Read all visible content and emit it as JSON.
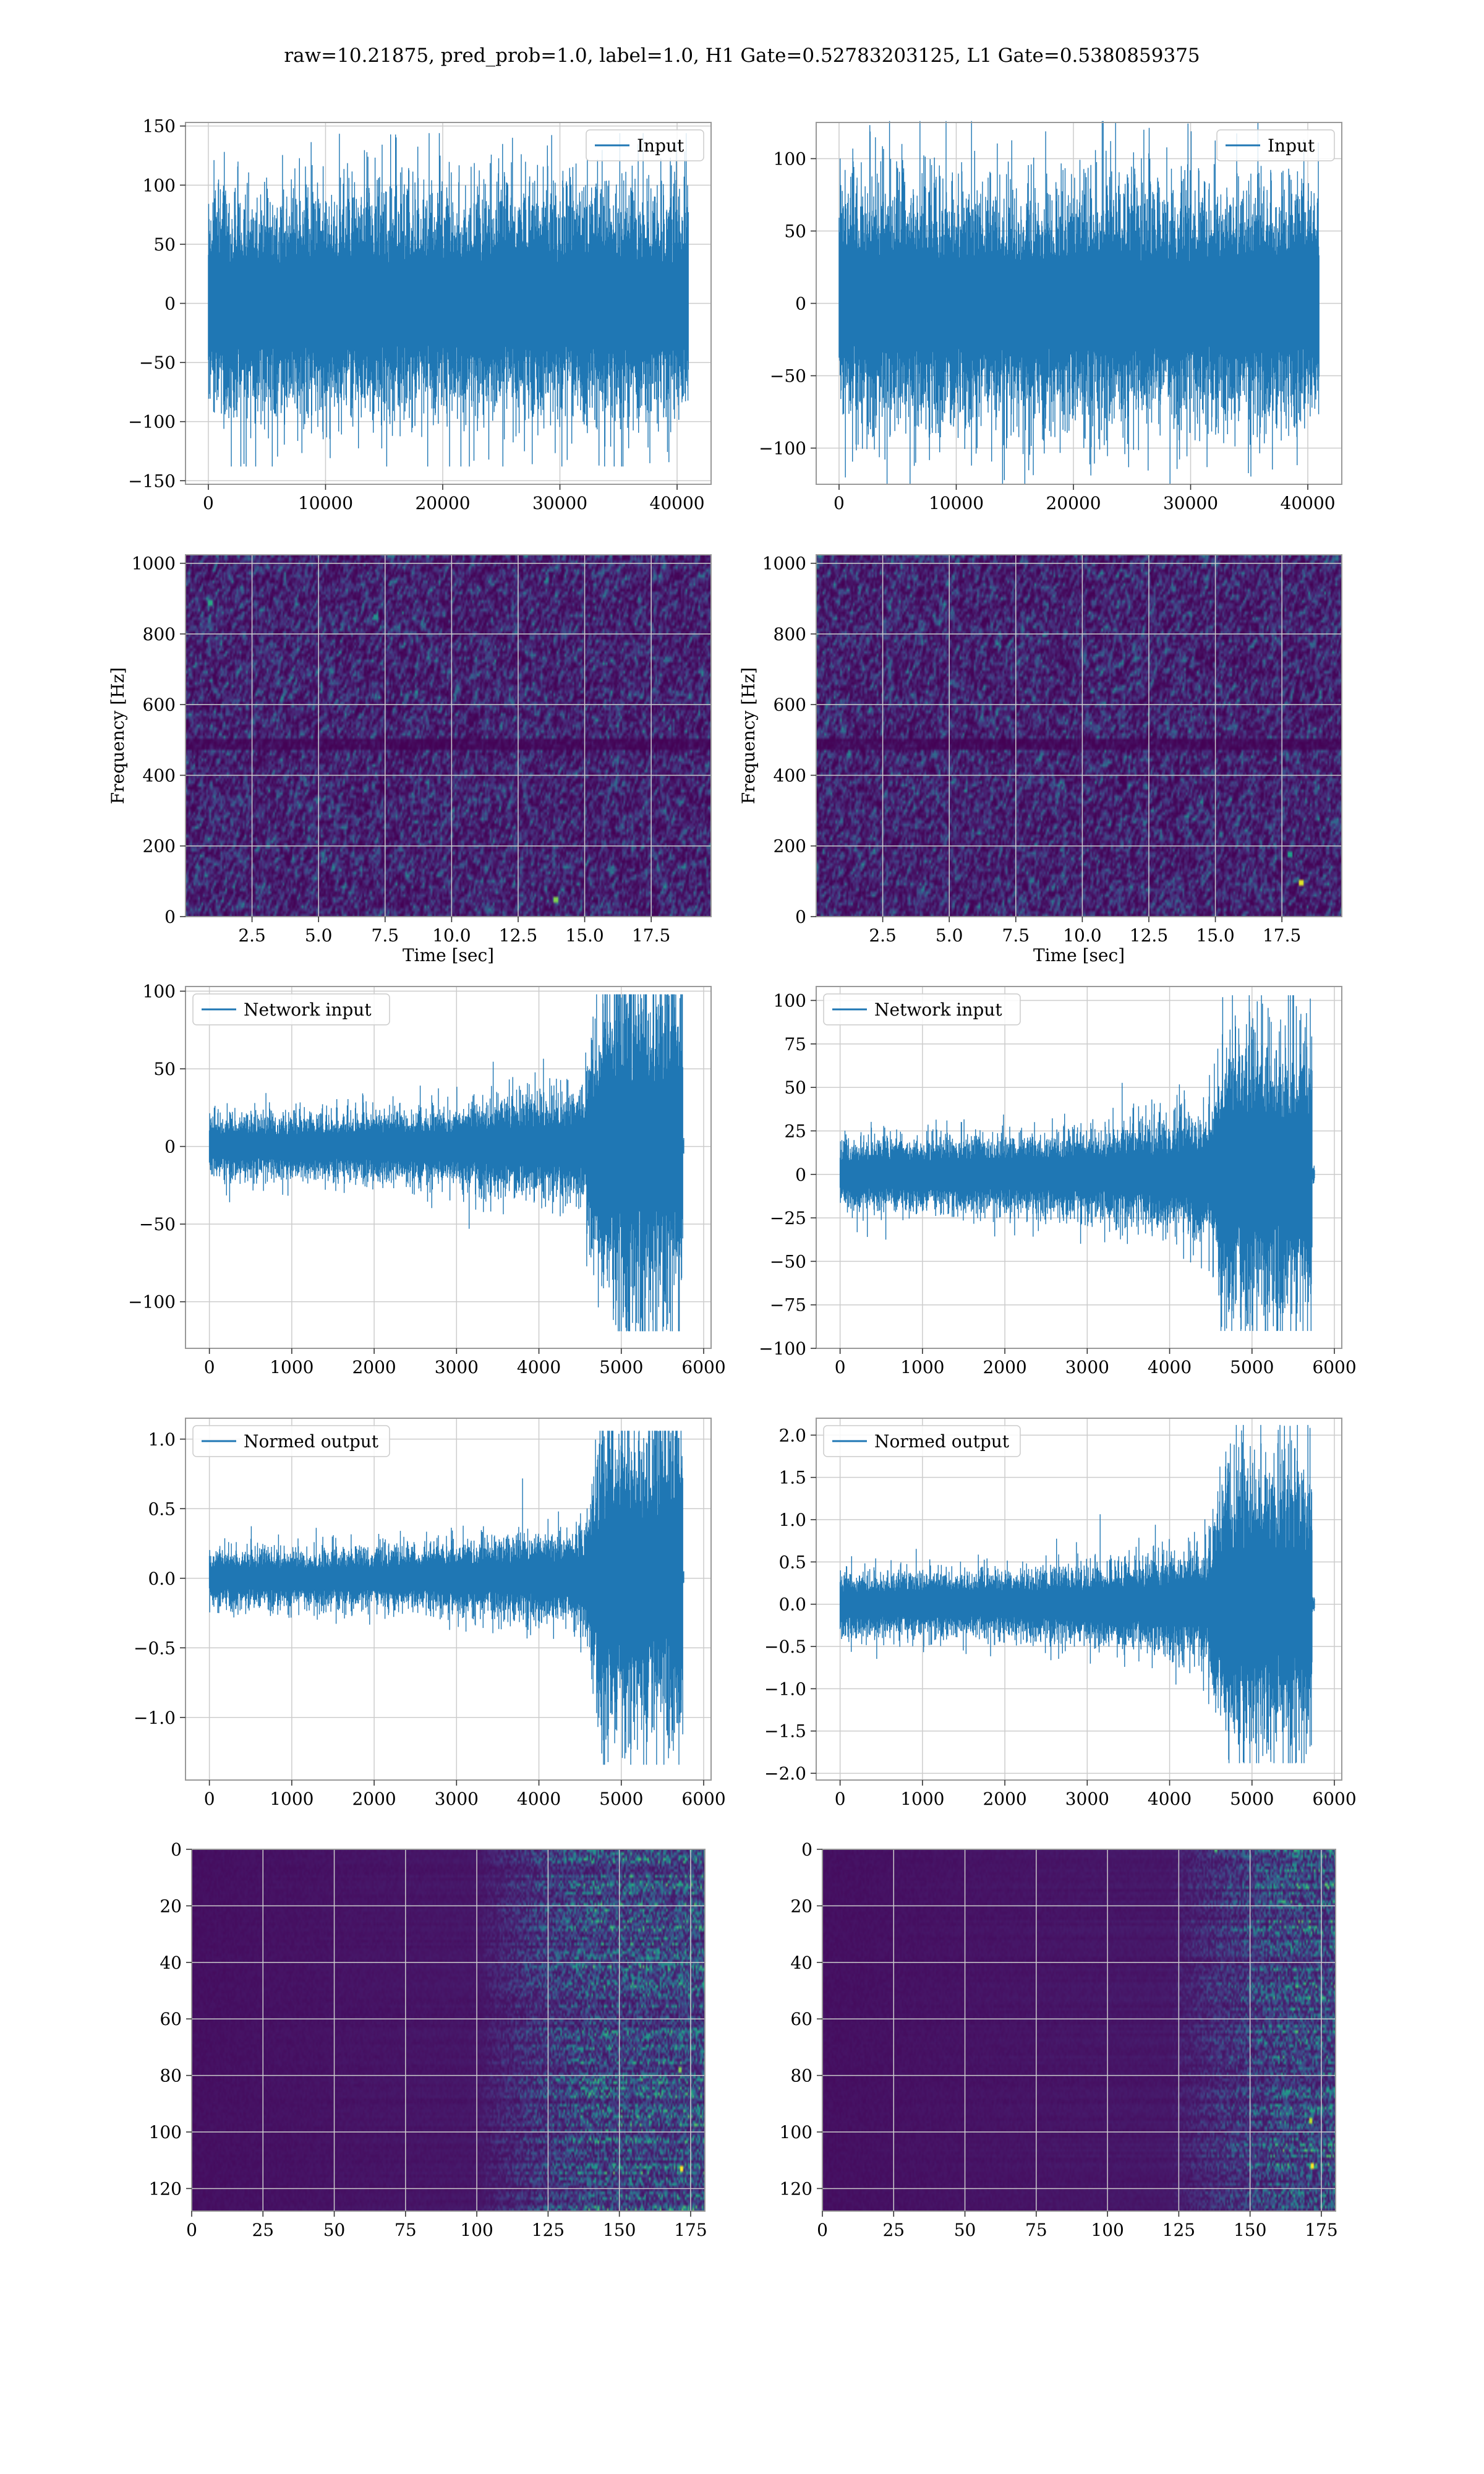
{
  "figure": {
    "title": "raw=10.21875, pred_prob=1.0, label=1.0, H1 Gate=0.52783203125, L1 Gate=0.5380859375",
    "signal_color": "#1f77b4",
    "frame_color": "#999999",
    "grid_color": "#cccccc",
    "heatmap_colormap": "viridis"
  },
  "chart_data": [
    {
      "id": "row1-left",
      "type": "line",
      "legend": [
        "Input"
      ],
      "legend_loc": "upper right",
      "xlim": [
        -1950,
        42900
      ],
      "ylim": [
        -153,
        153
      ],
      "xticks": [
        0,
        10000,
        20000,
        30000,
        40000
      ],
      "yticks": [
        -150,
        -100,
        -50,
        0,
        50,
        100,
        150
      ],
      "grid": true,
      "series": [
        {
          "name": "Input",
          "n": 40960,
          "envelope": {
            "stat": "noise",
            "sigma": 28,
            "peak_hi": 144,
            "peak_lo": -138
          }
        }
      ]
    },
    {
      "id": "row1-right",
      "type": "line",
      "legend": [
        "Input"
      ],
      "legend_loc": "upper right",
      "xlim": [
        -1950,
        42900
      ],
      "ylim": [
        -125,
        125
      ],
      "xticks": [
        0,
        10000,
        20000,
        30000,
        40000
      ],
      "yticks": [
        -100,
        -50,
        0,
        50,
        100
      ],
      "grid": true,
      "series": [
        {
          "name": "Input",
          "n": 40960,
          "envelope": {
            "stat": "noise",
            "sigma": 24,
            "peak_hi": 126,
            "peak_lo": -125
          }
        }
      ]
    },
    {
      "id": "row2-left",
      "type": "heatmap",
      "xlabel": "Time [sec]",
      "ylabel": "Frequency [Hz]",
      "xlim": [
        0,
        19.75
      ],
      "ylim": [
        0,
        1024
      ],
      "xticks": [
        "2.5",
        "5.0",
        "7.5",
        "10.0",
        "12.5",
        "15.0",
        "17.5"
      ],
      "xtick_values": [
        2.5,
        5.0,
        7.5,
        10.0,
        12.5,
        15.0,
        17.5
      ],
      "yticks": [
        "0",
        "200",
        "400",
        "600",
        "800",
        "1000"
      ],
      "ytick_values": [
        0,
        200,
        400,
        600,
        800,
        1000
      ],
      "grid": true,
      "colormap": "viridis",
      "features": {
        "dark_band_hz": [
          480,
          510
        ],
        "hot_spots": [
          {
            "t": 13.9,
            "f": 45,
            "v": 0.8
          },
          {
            "t": 7.1,
            "f": 845,
            "v": 0.5
          },
          {
            "t": 0.9,
            "f": 890,
            "v": 0.6
          }
        ]
      }
    },
    {
      "id": "row2-right",
      "type": "heatmap",
      "xlabel": "Time [sec]",
      "ylabel": "Frequency [Hz]",
      "xlim": [
        0,
        19.75
      ],
      "ylim": [
        0,
        1024
      ],
      "xticks": [
        "2.5",
        "5.0",
        "7.5",
        "10.0",
        "12.5",
        "15.0",
        "17.5"
      ],
      "xtick_values": [
        2.5,
        5.0,
        7.5,
        10.0,
        12.5,
        15.0,
        17.5
      ],
      "yticks": [
        "0",
        "200",
        "400",
        "600",
        "800",
        "1000"
      ],
      "ytick_values": [
        0,
        200,
        400,
        600,
        800,
        1000
      ],
      "grid": true,
      "colormap": "viridis",
      "features": {
        "dark_band_hz": [
          480,
          510
        ],
        "hot_spots": [
          {
            "t": 18.2,
            "f": 95,
            "v": 0.95
          },
          {
            "t": 17.8,
            "f": 180,
            "v": 0.55
          }
        ]
      }
    },
    {
      "id": "row3-left",
      "type": "line",
      "legend": [
        "Network input"
      ],
      "legend_loc": "upper left",
      "xlim": [
        -290,
        6090
      ],
      "ylim": [
        -130,
        103
      ],
      "xticks": [
        0,
        1000,
        2000,
        3000,
        4000,
        5000,
        6000
      ],
      "yticks": [
        -100,
        -50,
        0,
        50,
        100
      ],
      "grid": true,
      "series": [
        {
          "name": "Network input",
          "n": 5760,
          "envelope": {
            "stat": "chirp",
            "base_sigma": 6,
            "burst_start": 4680,
            "burst_end": 5750,
            "burst_sigma": 32,
            "peak_hi": 98,
            "peak_lo": -119
          }
        }
      ]
    },
    {
      "id": "row3-right",
      "type": "line",
      "legend": [
        "Network input"
      ],
      "legend_loc": "upper left",
      "xlim": [
        -290,
        6090
      ],
      "ylim": [
        -100,
        108
      ],
      "xticks": [
        0,
        1000,
        2000,
        3000,
        4000,
        5000,
        6000
      ],
      "yticks": [
        -100,
        -75,
        -50,
        -25,
        0,
        25,
        50,
        75,
        100
      ],
      "grid": true,
      "series": [
        {
          "name": "Network input",
          "n": 5760,
          "envelope": {
            "stat": "chirp",
            "base_sigma": 6,
            "burst_start": 4580,
            "burst_end": 5730,
            "burst_sigma": 24,
            "peak_hi": 103,
            "peak_lo": -90
          }
        }
      ]
    },
    {
      "id": "row4-left",
      "type": "line",
      "legend": [
        "Normed output"
      ],
      "legend_loc": "upper left",
      "xlim": [
        -290,
        6090
      ],
      "ylim": [
        -1.45,
        1.15
      ],
      "xticks": [
        0,
        1000,
        2000,
        3000,
        4000,
        5000,
        6000
      ],
      "yticks": [
        "-1.0",
        "-0.5",
        "0.0",
        "0.5",
        "1.0"
      ],
      "ytick_values": [
        -1.0,
        -0.5,
        0.0,
        0.5,
        1.0
      ],
      "grid": true,
      "series": [
        {
          "name": "Normed output",
          "n": 5760,
          "envelope": {
            "stat": "chirp",
            "base_sigma": 0.06,
            "burst_start": 4680,
            "burst_end": 5750,
            "burst_sigma": 0.34,
            "peak_hi": 1.06,
            "peak_lo": -1.34
          }
        }
      ]
    },
    {
      "id": "row4-right",
      "type": "line",
      "legend": [
        "Normed output"
      ],
      "legend_loc": "upper left",
      "xlim": [
        -290,
        6090
      ],
      "ylim": [
        -2.08,
        2.2
      ],
      "xticks": [
        0,
        1000,
        2000,
        3000,
        4000,
        5000,
        6000
      ],
      "yticks": [
        "-2.0",
        "-1.5",
        "-1.0",
        "-0.5",
        "0.0",
        "0.5",
        "1.0",
        "1.5",
        "2.0"
      ],
      "ytick_values": [
        -2.0,
        -1.5,
        -1.0,
        -0.5,
        0.0,
        0.5,
        1.0,
        1.5,
        2.0
      ],
      "grid": true,
      "series": [
        {
          "name": "Normed output",
          "n": 5760,
          "envelope": {
            "stat": "chirp",
            "base_sigma": 0.11,
            "burst_start": 4580,
            "burst_end": 5730,
            "burst_sigma": 0.5,
            "peak_hi": 2.12,
            "peak_lo": -1.88
          }
        }
      ]
    },
    {
      "id": "row5-left",
      "type": "heatmap",
      "xlim": [
        0,
        180
      ],
      "ylim": [
        128,
        0
      ],
      "xticks": [
        0,
        25,
        50,
        75,
        100,
        125,
        150,
        175
      ],
      "yticks": [
        0,
        20,
        40,
        60,
        80,
        100,
        120
      ],
      "grid": true,
      "colormap": "viridis",
      "features": {
        "activity_onset": 100,
        "hot_spots": [
          {
            "x": 172,
            "y": 113,
            "v": 1.0
          },
          {
            "x": 171,
            "y": 78,
            "v": 0.8
          },
          {
            "x": 141,
            "y": 1,
            "v": 0.5
          }
        ]
      }
    },
    {
      "id": "row5-right",
      "type": "heatmap",
      "xlim": [
        0,
        180
      ],
      "ylim": [
        128,
        0
      ],
      "xticks": [
        0,
        25,
        50,
        75,
        100,
        125,
        150,
        175
      ],
      "yticks": [
        0,
        20,
        40,
        60,
        80,
        100,
        120
      ],
      "grid": true,
      "colormap": "viridis",
      "features": {
        "activity_onset": 122,
        "hot_spots": [
          {
            "x": 172,
            "y": 112,
            "v": 1.0
          },
          {
            "x": 171,
            "y": 96,
            "v": 0.9
          },
          {
            "x": 138,
            "y": 0,
            "v": 0.7
          }
        ]
      }
    }
  ]
}
